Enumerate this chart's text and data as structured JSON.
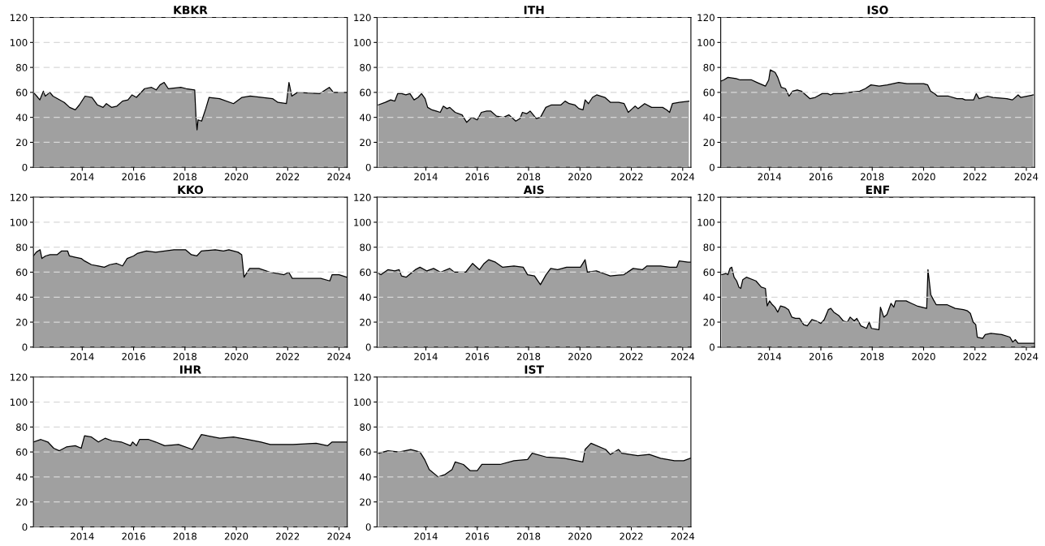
{
  "chart_data": [
    {
      "type": "area",
      "title": "KBKR",
      "xlim": [
        2012.1,
        2024.32
      ],
      "xticks": [
        2014,
        2016,
        2018,
        2020,
        2022,
        2024
      ],
      "ylim": [
        0,
        120
      ],
      "yticks": [
        0,
        20,
        40,
        60,
        80,
        100,
        120
      ],
      "grid": "y",
      "series": [
        {
          "color": "#a0a0a0",
          "x": [
            2012.1,
            2012.27,
            2012.35,
            2012.49,
            2012.56,
            2012.74,
            2012.86,
            2013.3,
            2013.51,
            2013.73,
            2013.89,
            2014.11,
            2014.38,
            2014.59,
            2014.81,
            2014.94,
            2015.14,
            2015.35,
            2015.57,
            2015.78,
            2015.94,
            2016.11,
            2016.43,
            2016.7,
            2016.88,
            2017.03,
            2017.19,
            2017.35,
            2017.84,
            2018.05,
            2018.38,
            2018.43,
            2018.47,
            2018.51,
            2018.65,
            2018.81,
            2018.94,
            2019.35,
            2019.89,
            2020.22,
            2020.54,
            2021.41,
            2021.62,
            2021.95,
            2022.05,
            2022.16,
            2022.38,
            2023.24,
            2023.62,
            2023.78,
            2024.32
          ],
          "values": [
            60,
            56,
            54,
            61,
            57,
            60,
            57,
            52,
            48,
            46,
            50,
            57,
            56,
            50,
            48,
            51,
            48,
            49,
            53,
            54,
            58,
            56,
            63,
            64,
            62,
            66,
            68,
            63,
            64,
            63,
            62,
            40,
            30,
            38,
            37,
            47,
            56,
            55,
            51,
            56,
            57,
            55,
            52,
            51,
            68,
            57,
            60,
            59,
            64,
            60,
            60
          ]
        }
      ]
    },
    {
      "type": "area",
      "title": "ITH",
      "xlim": [
        2012.1,
        2024.32
      ],
      "xticks": [
        2014,
        2016,
        2018,
        2020,
        2022,
        2024
      ],
      "ylim": [
        0,
        120
      ],
      "yticks": [
        0,
        20,
        40,
        60,
        80,
        100,
        120
      ],
      "grid": "y",
      "series": [
        {
          "color": "#a0a0a0",
          "x": [
            2012.15,
            2012.42,
            2012.63,
            2012.79,
            2012.9,
            2013.06,
            2013.22,
            2013.38,
            2013.54,
            2013.7,
            2013.83,
            2013.97,
            2014.07,
            2014.24,
            2014.4,
            2014.56,
            2014.68,
            2014.82,
            2014.93,
            2015.14,
            2015.41,
            2015.59,
            2015.79,
            2016.0,
            2016.16,
            2016.37,
            2016.53,
            2016.75,
            2017.02,
            2017.23,
            2017.5,
            2017.66,
            2017.76,
            2017.93,
            2018.06,
            2018.3,
            2018.46,
            2018.67,
            2018.89,
            2019.26,
            2019.42,
            2019.58,
            2019.8,
            2019.96,
            2020.12,
            2020.2,
            2020.33,
            2020.49,
            2020.65,
            2020.97,
            2021.19,
            2021.51,
            2021.72,
            2021.88,
            2022.04,
            2022.15,
            2022.26,
            2022.52,
            2022.79,
            2023.22,
            2023.38,
            2023.49,
            2023.6,
            2023.87,
            2024.24
          ],
          "values": [
            50,
            52,
            54,
            53,
            59,
            59,
            58,
            59,
            54,
            56,
            59,
            55,
            48,
            46,
            45,
            44,
            49,
            47,
            48,
            44,
            42,
            36,
            40,
            38,
            44,
            45,
            45,
            41,
            40,
            42,
            37,
            39,
            44,
            43,
            45,
            39,
            40,
            48,
            50,
            50,
            53,
            51,
            50,
            47,
            46,
            54,
            51,
            56,
            58,
            56,
            52,
            52,
            51,
            44,
            47,
            49,
            47,
            51,
            48,
            48,
            46,
            44,
            51,
            52,
            53
          ]
        }
      ]
    },
    {
      "type": "area",
      "title": "ISO",
      "xlim": [
        2012.1,
        2024.32
      ],
      "xticks": [
        2014,
        2016,
        2018,
        2020,
        2022,
        2024
      ],
      "ylim": [
        0,
        120
      ],
      "yticks": [
        0,
        20,
        40,
        60,
        80,
        100,
        120
      ],
      "grid": "y",
      "series": [
        {
          "color": "#a0a0a0",
          "x": [
            2012.1,
            2012.22,
            2012.38,
            2012.7,
            2012.86,
            2013.3,
            2013.51,
            2013.84,
            2013.97,
            2014.03,
            2014.22,
            2014.32,
            2014.46,
            2014.62,
            2014.76,
            2014.9,
            2015.08,
            2015.24,
            2015.57,
            2015.78,
            2016.05,
            2016.27,
            2016.38,
            2016.49,
            2016.81,
            2017.08,
            2017.51,
            2017.73,
            2017.95,
            2018.27,
            2018.59,
            2019.03,
            2019.35,
            2020.0,
            2020.16,
            2020.27,
            2020.43,
            2020.54,
            2020.97,
            2021.3,
            2021.51,
            2021.62,
            2021.95,
            2022.05,
            2022.16,
            2022.49,
            2022.7,
            2023.24,
            2023.46,
            2023.68,
            2023.78,
            2024.27
          ],
          "values": [
            69,
            70,
            72,
            71,
            70,
            70,
            68,
            65,
            70,
            78,
            76,
            72,
            64,
            63,
            57,
            61,
            62,
            61,
            55,
            56,
            59,
            59,
            58,
            59,
            59,
            60,
            61,
            63,
            66,
            65,
            66,
            68,
            67,
            67,
            66,
            61,
            59,
            57,
            57,
            55,
            55,
            54,
            54,
            59,
            55,
            57,
            56,
            55,
            54,
            58,
            56,
            58
          ]
        }
      ]
    },
    {
      "type": "area",
      "title": "KKO",
      "xlim": [
        2012.1,
        2024.32
      ],
      "xticks": [
        2014,
        2016,
        2018,
        2020,
        2022,
        2024
      ],
      "ylim": [
        0,
        120
      ],
      "yticks": [
        0,
        20,
        40,
        60,
        80,
        100,
        120
      ],
      "grid": "y",
      "series": [
        {
          "color": "#a0a0a0",
          "x": [
            2012.1,
            2012.21,
            2012.36,
            2012.43,
            2012.57,
            2012.75,
            2013.02,
            2013.2,
            2013.43,
            2013.5,
            2013.73,
            2013.96,
            2014.09,
            2014.36,
            2014.63,
            2014.86,
            2015.07,
            2015.34,
            2015.57,
            2015.75,
            2016.0,
            2016.14,
            2016.5,
            2016.86,
            2017.21,
            2017.57,
            2018.02,
            2018.25,
            2018.46,
            2018.64,
            2019.18,
            2019.5,
            2019.71,
            2020.07,
            2020.21,
            2020.3,
            2020.52,
            2020.88,
            2021.32,
            2021.86,
            2022.04,
            2022.18,
            2022.57,
            2023.29,
            2023.64,
            2023.73,
            2024.0,
            2024.3
          ],
          "values": [
            73,
            76,
            78,
            71,
            73,
            74,
            74,
            77,
            77,
            73,
            72,
            71,
            69,
            66,
            65,
            64,
            66,
            67,
            65,
            71,
            73,
            75,
            77,
            76,
            77,
            78,
            78,
            74,
            73,
            77,
            78,
            77,
            78,
            76,
            74,
            56,
            63,
            63,
            60,
            58,
            60,
            55,
            55,
            55,
            53,
            58,
            58,
            56
          ]
        }
      ]
    },
    {
      "type": "area",
      "title": "AIS",
      "xlim": [
        2012.1,
        2024.32
      ],
      "xticks": [
        2014,
        2016,
        2018,
        2020,
        2022,
        2024
      ],
      "ylim": [
        0,
        120
      ],
      "yticks": [
        0,
        20,
        40,
        60,
        80,
        100,
        120
      ],
      "grid": "y",
      "series": [
        {
          "color": "#a0a0a0",
          "x": [
            2012.16,
            2012.25,
            2012.52,
            2012.79,
            2012.96,
            2013.05,
            2013.23,
            2013.59,
            2013.77,
            2014.04,
            2014.3,
            2014.57,
            2014.93,
            2015.11,
            2015.55,
            2015.82,
            2016.09,
            2016.27,
            2016.45,
            2016.71,
            2016.98,
            2017.43,
            2017.79,
            2017.96,
            2018.23,
            2018.46,
            2018.68,
            2018.86,
            2019.13,
            2019.48,
            2020.02,
            2020.2,
            2020.29,
            2020.64,
            2020.91,
            2021.18,
            2021.71,
            2022.07,
            2022.43,
            2022.61,
            2023.14,
            2023.5,
            2023.77,
            2023.86,
            2024.21,
            2024.3
          ],
          "values": [
            59,
            58,
            62,
            61,
            62,
            57,
            56,
            62,
            64,
            61,
            63,
            60,
            63,
            60,
            60,
            67,
            62,
            67,
            70,
            68,
            64,
            65,
            64,
            58,
            57,
            50,
            58,
            63,
            62,
            64,
            64,
            70,
            60,
            61,
            59,
            57,
            58,
            63,
            62,
            65,
            65,
            64,
            64,
            69,
            68,
            68
          ]
        }
      ]
    },
    {
      "type": "area",
      "title": "ENF",
      "xlim": [
        2012.1,
        2024.32
      ],
      "xticks": [
        2014,
        2016,
        2018,
        2020,
        2022,
        2024
      ],
      "ylim": [
        0,
        120
      ],
      "yticks": [
        0,
        20,
        40,
        60,
        80,
        100,
        120
      ],
      "grid": "y",
      "series": [
        {
          "color": "#a0a0a0",
          "x": [
            2012.14,
            2012.3,
            2012.38,
            2012.46,
            2012.53,
            2012.62,
            2012.72,
            2012.81,
            2012.88,
            2012.96,
            2013.1,
            2013.47,
            2013.68,
            2013.84,
            2013.91,
            2014.0,
            2014.11,
            2014.21,
            2014.32,
            2014.43,
            2014.59,
            2014.74,
            2014.87,
            2015.01,
            2015.17,
            2015.33,
            2015.47,
            2015.65,
            2015.81,
            2016.0,
            2016.13,
            2016.29,
            2016.39,
            2016.5,
            2016.71,
            2016.87,
            2017.03,
            2017.14,
            2017.3,
            2017.4,
            2017.56,
            2017.78,
            2017.88,
            2017.97,
            2018.26,
            2018.32,
            2018.45,
            2018.57,
            2018.73,
            2018.84,
            2018.91,
            2019.32,
            2019.53,
            2019.74,
            2020.12,
            2020.17,
            2020.28,
            2020.38,
            2020.49,
            2020.91,
            2021.23,
            2021.55,
            2021.71,
            2021.82,
            2021.93,
            2022.03,
            2022.09,
            2022.3,
            2022.4,
            2022.62,
            2023.04,
            2023.36,
            2023.47,
            2023.57,
            2023.68,
            2024.16,
            2024.3
          ],
          "values": [
            58,
            59,
            58,
            63,
            64,
            56,
            53,
            48,
            47,
            54,
            56,
            53,
            48,
            47,
            33,
            37,
            34,
            32,
            28,
            33,
            32,
            30,
            24,
            23,
            23,
            18,
            17,
            22,
            21,
            19,
            22,
            30,
            31,
            28,
            25,
            21,
            20,
            24,
            21,
            23,
            17,
            15,
            20,
            15,
            14,
            32,
            24,
            26,
            35,
            32,
            37,
            37,
            35,
            33,
            31,
            62,
            42,
            38,
            34,
            34,
            31,
            30,
            29,
            27,
            20,
            18,
            8,
            7,
            10,
            11,
            10,
            8,
            4,
            6,
            3,
            3,
            3
          ]
        }
      ]
    },
    {
      "type": "area",
      "title": "IHR",
      "xlim": [
        2012.1,
        2024.32
      ],
      "xticks": [
        2014,
        2016,
        2018,
        2020,
        2022,
        2024
      ],
      "ylim": [
        0,
        120
      ],
      "yticks": [
        0,
        20,
        40,
        60,
        80,
        100,
        120
      ],
      "grid": "y",
      "series": [
        {
          "color": "#a0a0a0",
          "x": [
            2012.1,
            2012.39,
            2012.66,
            2012.89,
            2013.11,
            2013.38,
            2013.73,
            2013.96,
            2014.09,
            2014.36,
            2014.63,
            2014.89,
            2015.16,
            2015.52,
            2015.88,
            2015.96,
            2016.11,
            2016.23,
            2016.59,
            2016.86,
            2017.21,
            2017.75,
            2018.29,
            2018.64,
            2019.36,
            2019.89,
            2020.43,
            2020.96,
            2021.32,
            2022.21,
            2023.11,
            2023.55,
            2023.73,
            2024.3
          ],
          "values": [
            68,
            70,
            68,
            63,
            61,
            64,
            65,
            63,
            73,
            72,
            68,
            71,
            69,
            68,
            65,
            68,
            65,
            70,
            70,
            68,
            65,
            66,
            62,
            74,
            71,
            72,
            70,
            68,
            66,
            66,
            67,
            65,
            68,
            68
          ]
        }
      ]
    },
    {
      "type": "area",
      "title": "IST",
      "xlim": [
        2012.1,
        2024.32
      ],
      "xticks": [
        2014,
        2016,
        2018,
        2020,
        2022,
        2024
      ],
      "ylim": [
        0,
        120
      ],
      "yticks": [
        0,
        20,
        40,
        60,
        80,
        100,
        120
      ],
      "grid": "y",
      "series": [
        {
          "color": "#a0a0a0",
          "x": [
            2012.16,
            2012.52,
            2012.96,
            2013.41,
            2013.77,
            2013.95,
            2014.13,
            2014.48,
            2014.75,
            2015.02,
            2015.14,
            2015.46,
            2015.73,
            2016.0,
            2016.18,
            2016.89,
            2017.43,
            2017.96,
            2018.14,
            2018.68,
            2019.39,
            2020.11,
            2020.2,
            2020.43,
            2021.0,
            2021.18,
            2021.5,
            2021.63,
            2022.25,
            2022.7,
            2023.14,
            2023.68,
            2024.04,
            2024.3
          ],
          "values": [
            59,
            61,
            60,
            62,
            60,
            54,
            46,
            40,
            42,
            46,
            52,
            50,
            45,
            45,
            50,
            50,
            53,
            54,
            59,
            56,
            55,
            52,
            62,
            67,
            62,
            58,
            62,
            59,
            57,
            58,
            55,
            53,
            53,
            55
          ]
        }
      ]
    }
  ]
}
